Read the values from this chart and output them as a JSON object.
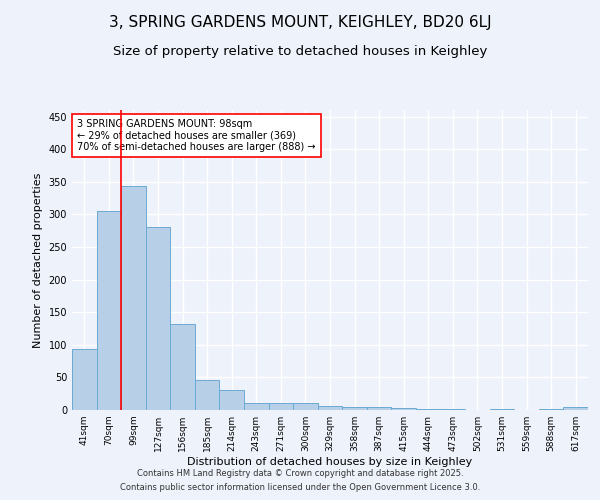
{
  "title": "3, SPRING GARDENS MOUNT, KEIGHLEY, BD20 6LJ",
  "subtitle": "Size of property relative to detached houses in Keighley",
  "xlabel": "Distribution of detached houses by size in Keighley",
  "ylabel": "Number of detached properties",
  "categories": [
    "41sqm",
    "70sqm",
    "99sqm",
    "127sqm",
    "156sqm",
    "185sqm",
    "214sqm",
    "243sqm",
    "271sqm",
    "300sqm",
    "329sqm",
    "358sqm",
    "387sqm",
    "415sqm",
    "444sqm",
    "473sqm",
    "502sqm",
    "531sqm",
    "559sqm",
    "588sqm",
    "617sqm"
  ],
  "values": [
    93,
    305,
    343,
    280,
    132,
    46,
    30,
    10,
    11,
    10,
    6,
    4,
    4,
    3,
    1,
    1,
    0,
    1,
    0,
    1,
    5
  ],
  "bar_color": "#b8cfe8",
  "bar_edge_color": "#6aaad4",
  "red_line_x": 1.5,
  "ylim": [
    0,
    460
  ],
  "annotation_text": "3 SPRING GARDENS MOUNT: 98sqm\n← 29% of detached houses are smaller (369)\n70% of semi-detached houses are larger (888) →",
  "annotation_box_color": "white",
  "annotation_box_edge_color": "red",
  "title_fontsize": 11,
  "subtitle_fontsize": 9.5,
  "tick_fontsize": 6.5,
  "ylabel_fontsize": 8,
  "xlabel_fontsize": 8,
  "annotation_fontsize": 7,
  "footer_text1": "Contains HM Land Registry data © Crown copyright and database right 2025.",
  "footer_text2": "Contains public sector information licensed under the Open Government Licence 3.0.",
  "bg_color": "#eef2fb",
  "grid_color": "#ffffff"
}
